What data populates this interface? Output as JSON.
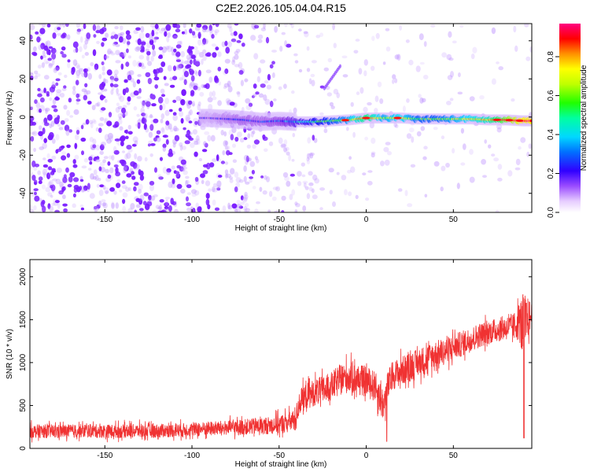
{
  "figure": {
    "title": "C2E2.2026.105.04.04.R15"
  },
  "chart_data": [
    {
      "type": "heatmap",
      "xlabel": "Height of straight line (km)",
      "ylabel": "Frequency (Hz)",
      "xlim": [
        -193,
        95
      ],
      "ylim": [
        -50,
        49
      ],
      "x_ticks": [
        -150,
        -100,
        -50,
        0,
        50
      ],
      "y_ticks": [
        -40,
        -20,
        0,
        20,
        40
      ],
      "colorbar": {
        "label": "Normalized spectral amplitude",
        "range": [
          0.0,
          0.97
        ],
        "ticks": [
          0.0,
          0.2,
          0.4,
          0.6,
          0.8
        ],
        "tick_labels": [
          "0.0",
          "0.2",
          "0.4",
          "0.6",
          "0.8"
        ],
        "colormap": [
          "#ffffff",
          "#e0c8ff",
          "#8a2be2",
          "#0000ff",
          "#00e0ff",
          "#00ff40",
          "#ffff00",
          "#ff8000",
          "#ff0000",
          "#ff00a0"
        ]
      },
      "band": [
        {
          "x": -90,
          "y": -0.5,
          "amp": 0.18
        },
        {
          "x": -80,
          "y": -1.0,
          "amp": 0.22
        },
        {
          "x": -70,
          "y": -1.5,
          "amp": 0.25
        },
        {
          "x": -60,
          "y": -2.5,
          "amp": 0.24
        },
        {
          "x": -50,
          "y": -2.0,
          "amp": 0.28
        },
        {
          "x": -40,
          "y": -2.5,
          "amp": 0.35
        },
        {
          "x": -30,
          "y": -2.5,
          "amp": 0.42
        },
        {
          "x": -20,
          "y": -2.0,
          "amp": 0.48
        },
        {
          "x": -10,
          "y": -1.5,
          "amp": 0.55
        },
        {
          "x": 0,
          "y": -0.5,
          "amp": 0.7
        },
        {
          "x": 10,
          "y": -0.5,
          "amp": 0.55
        },
        {
          "x": 20,
          "y": -0.5,
          "amp": 0.6
        },
        {
          "x": 30,
          "y": -1.0,
          "amp": 0.5
        },
        {
          "x": 40,
          "y": -1.0,
          "amp": 0.5
        },
        {
          "x": 50,
          "y": -1.0,
          "amp": 0.55
        },
        {
          "x": 60,
          "y": -1.0,
          "amp": 0.6
        },
        {
          "x": 70,
          "y": -1.5,
          "amp": 0.65
        },
        {
          "x": 80,
          "y": -1.5,
          "amp": 0.8
        },
        {
          "x": 90,
          "y": -2.0,
          "amp": 0.9
        }
      ]
    },
    {
      "type": "line",
      "xlabel": "Height of straight line (km)",
      "ylabel": "SNR (10 * v/v)",
      "xlim": [
        -193,
        95
      ],
      "ylim": [
        0,
        2200
      ],
      "x_ticks": [
        -150,
        -100,
        -50,
        0,
        50
      ],
      "y_ticks": [
        0,
        500,
        1000,
        1500,
        2000
      ],
      "color": "#f03232",
      "series": [
        {
          "x": [
            -193,
            -180,
            -170,
            -160,
            -150,
            -140,
            -130,
            -120,
            -110,
            -100,
            -90,
            -80,
            -70,
            -60,
            -55,
            -50,
            -45,
            -42,
            -40,
            -38,
            -35,
            -30,
            -25,
            -20,
            -15,
            -10,
            -5,
            0,
            5,
            10,
            12,
            15,
            20,
            25,
            30,
            35,
            40,
            45,
            50,
            55,
            60,
            65,
            70,
            75,
            80,
            85,
            88,
            90,
            92,
            95
          ],
          "y": [
            200,
            200,
            200,
            205,
            200,
            200,
            205,
            205,
            210,
            220,
            230,
            240,
            250,
            260,
            270,
            280,
            300,
            320,
            400,
            550,
            600,
            650,
            680,
            720,
            800,
            830,
            800,
            780,
            720,
            500,
            700,
            850,
            900,
            950,
            1000,
            1050,
            1100,
            1130,
            1180,
            1220,
            1270,
            1320,
            1350,
            1380,
            1400,
            1430,
            1480,
            1400,
            1500,
            1550
          ],
          "band_halfwidth": [
            130,
            130,
            130,
            130,
            130,
            130,
            130,
            130,
            130,
            130,
            140,
            140,
            150,
            160,
            170,
            180,
            200,
            200,
            220,
            240,
            250,
            260,
            270,
            280,
            300,
            300,
            300,
            300,
            300,
            320,
            300,
            280,
            280,
            280,
            270,
            270,
            260,
            260,
            250,
            250,
            240,
            240,
            230,
            230,
            230,
            240,
            400,
            700,
            450,
            250
          ]
        }
      ]
    }
  ]
}
